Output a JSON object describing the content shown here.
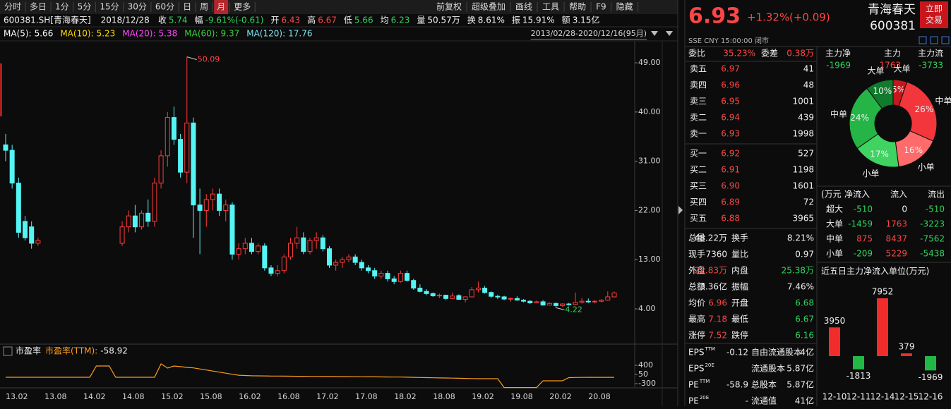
{
  "toolbar": {
    "periods": [
      "分时",
      "多日",
      "1分",
      "5分",
      "15分",
      "30分",
      "60分",
      "日",
      "周",
      "月",
      "更多"
    ],
    "tools": [
      "前复权",
      "超级叠加",
      "画线",
      "工具",
      "帮助",
      "F9",
      "隐藏"
    ]
  },
  "quote_line": {
    "code": "600381.SH[青海春天]",
    "date": "2018/12/28",
    "fields": [
      {
        "label": "收",
        "value": 5.74,
        "tone": "down"
      },
      {
        "label": "幅",
        "value": "-9.61%(-0.61)",
        "tone": "down"
      },
      {
        "label": "开",
        "value": 6.43,
        "tone": "up"
      },
      {
        "label": "高",
        "value": 6.67,
        "tone": "up"
      },
      {
        "label": "低",
        "value": 5.66,
        "tone": "down"
      },
      {
        "label": "均",
        "value": 6.23,
        "tone": "down"
      },
      {
        "label": "量",
        "value": "50.57万"
      },
      {
        "label": "换",
        "value": "8.61%"
      },
      {
        "label": "振",
        "value": "15.91%"
      },
      {
        "label": "额",
        "value": "3.15亿"
      }
    ]
  },
  "ma_line": [
    {
      "label": "MA(5):",
      "value": 5.66,
      "color": "#ffffff"
    },
    {
      "label": "MA(10):",
      "value": 5.23,
      "color": "#ffd800"
    },
    {
      "label": "MA(20):",
      "value": 5.38,
      "color": "#ff46ff"
    },
    {
      "label": "MA(60):",
      "value": 9.37,
      "color": "#35d535"
    },
    {
      "label": "MA(120):",
      "value": 17.76,
      "color": "#7fe3f0"
    }
  ],
  "range": "2013/02/28-2020/12/16(95月)",
  "quote": {
    "price": 6.93,
    "change_pct": "+1.32%",
    "change": "(+0.09)",
    "name": "青海春天",
    "code": "600381",
    "button": [
      "立即",
      "交易"
    ],
    "status": "SSE  CNY  15:00:00  闭市"
  },
  "order_ratio": [
    {
      "label": "委比",
      "value": "35.23%"
    },
    {
      "label": "委差",
      "value": "0.38万"
    }
  ],
  "asks": [
    {
      "label": "卖五",
      "price": "6.97",
      "volume": 41
    },
    {
      "label": "卖四",
      "price": "6.96",
      "volume": 48
    },
    {
      "label": "卖三",
      "price": "6.95",
      "volume": 1001
    },
    {
      "label": "卖二",
      "price": "6.94",
      "volume": 439
    },
    {
      "label": "卖一",
      "price": "6.93",
      "volume": 1998
    }
  ],
  "bids": [
    {
      "label": "买一",
      "price": "6.92",
      "volume": 527
    },
    {
      "label": "买二",
      "price": "6.91",
      "volume": 1198
    },
    {
      "label": "买三",
      "price": "6.90",
      "volume": 1601
    },
    {
      "label": "买四",
      "price": "6.89",
      "volume": 72
    },
    {
      "label": "买五",
      "price": "6.88",
      "volume": 3965
    }
  ],
  "stats": [
    [
      {
        "label": "总量",
        "value": "48.22万"
      },
      {
        "label": "换手",
        "value": "8.21%"
      }
    ],
    [
      {
        "label": "现手",
        "value": 7360
      },
      {
        "label": "量比",
        "value": 0.97
      }
    ],
    [
      {
        "label": "外盘",
        "value": "22.83万",
        "tone": "up"
      },
      {
        "label": "内盘",
        "value": "25.38万",
        "tone": "down"
      }
    ],
    [
      {
        "label": "总额",
        "value": "3.36亿"
      },
      {
        "label": "振幅",
        "value": "7.46%"
      }
    ],
    [
      {
        "label": "均价",
        "value": 6.96,
        "tone": "up"
      },
      {
        "label": "开盘",
        "value": 6.68,
        "tone": "down"
      }
    ],
    [
      {
        "label": "最高",
        "value": 7.18,
        "tone": "up"
      },
      {
        "label": "最低",
        "value": 6.67,
        "tone": "down"
      }
    ],
    [
      {
        "label": "涨停",
        "value": 7.52,
        "tone": "up"
      },
      {
        "label": "跌停",
        "value": 6.16,
        "tone": "down"
      }
    ]
  ],
  "fundamentals": [
    [
      {
        "label": "EPS",
        "sup": "TTM",
        "value": -0.12
      },
      {
        "label": "自由流通股本",
        "value": "4亿"
      }
    ],
    [
      {
        "label": "EPS",
        "sup": "20E"
      },
      {
        "label": "流通股本",
        "value": "5.87亿"
      }
    ],
    [
      {
        "label": "PE",
        "sup": "TTM",
        "value": -58.9
      },
      {
        "label": "总股本",
        "value": "5.87亿"
      }
    ],
    [
      {
        "label": "PE",
        "sup": "20E",
        "value": "-"
      },
      {
        "label": "流通值",
        "value": "41亿"
      }
    ]
  ],
  "main_flow": {
    "headers": [
      "主力净",
      "主力",
      "主力流"
    ],
    "values": [
      -1969,
      1763,
      -3733
    ]
  },
  "flow_table": {
    "headers": [
      "(万元",
      "净流入",
      "流入",
      "流出"
    ],
    "rows": [
      [
        "超大",
        -510,
        0,
        -510
      ],
      [
        "大单",
        -1459,
        1763,
        -3223
      ],
      [
        "中单",
        875,
        8437,
        -7562
      ],
      [
        "小单",
        -209,
        5229,
        -5438
      ]
    ]
  },
  "chart_data": [
    {
      "type": "candlestick",
      "up_color": "#ff3b3b",
      "down_color": "#54f5f5",
      "categories": [
        "13.02",
        null,
        null,
        null,
        null,
        null,
        "13.08",
        null,
        null,
        null,
        null,
        null,
        "14.02",
        null,
        null,
        null,
        null,
        null,
        "14.08",
        null,
        null,
        null,
        null,
        null,
        "15.02",
        null,
        null,
        null,
        null,
        null,
        "15.08",
        null,
        null,
        null,
        null,
        null,
        "16.02",
        null,
        null,
        null,
        null,
        null,
        "16.08",
        null,
        null,
        null,
        null,
        null,
        "17.02",
        null,
        null,
        null,
        null,
        null,
        "17.08",
        null,
        null,
        null,
        null,
        null,
        "18.02",
        null,
        null,
        null,
        null,
        null,
        "18.08",
        null,
        null,
        null,
        null,
        null,
        "19.02",
        null,
        null,
        null,
        null,
        null,
        "19.08",
        null,
        null,
        null,
        null,
        null,
        "20.02",
        null,
        null,
        null,
        null,
        null,
        "20.08",
        null,
        null,
        null,
        null
      ],
      "open": [
        34,
        33,
        27,
        20,
        19,
        16,
        null,
        null,
        null,
        null,
        null,
        null,
        null,
        null,
        null,
        null,
        null,
        null,
        16,
        19,
        21,
        19,
        21.5,
        20,
        27,
        32,
        39,
        35,
        29,
        38,
        23,
        22,
        24,
        25,
        22,
        23,
        14,
        15,
        16,
        14.5,
        15.5,
        11.5,
        10.5,
        11,
        13.5,
        16,
        17,
        14.5,
        16.5,
        17,
        15,
        12,
        12.5,
        13,
        13.5,
        12.5,
        11.5,
        11,
        10,
        10.5,
        9.5,
        9,
        10.5,
        9.2,
        7.8,
        7.2,
        6.8,
        6.4,
        6.5,
        5.9,
        6.43,
        5.74,
        6.2,
        7.5,
        7.8,
        7,
        6.3,
        6.2,
        5.8,
        5.9,
        5.6,
        5.4,
        5.1,
        5.3,
        4.7,
        5,
        4.6,
        4.9,
        4.8,
        5.2,
        5.4,
        5.3,
        5.4,
        5.6,
        6.2
      ],
      "high": [
        36,
        34,
        28,
        21,
        20,
        17,
        null,
        null,
        null,
        null,
        null,
        null,
        null,
        null,
        null,
        null,
        null,
        null,
        20,
        22,
        23,
        22,
        24,
        28,
        33,
        40,
        41,
        36,
        50.09,
        39,
        26,
        25,
        26,
        26,
        24,
        23.5,
        16,
        17,
        17,
        16,
        16,
        12,
        12,
        14,
        17,
        19,
        18,
        17,
        18,
        17.5,
        15.5,
        13,
        13.5,
        14,
        14,
        13,
        12,
        11.5,
        11,
        11,
        10,
        11,
        11,
        9.5,
        8.5,
        7.6,
        7,
        6.8,
        6.6,
        7,
        6.67,
        6.3,
        8,
        9,
        8.2,
        7.2,
        6.6,
        6.4,
        6.1,
        6.3,
        5.8,
        5.6,
        5.5,
        5.6,
        5.2,
        5.2,
        5,
        5.1,
        7,
        6,
        5.9,
        5.6,
        5.8,
        7.2,
        7.18
      ],
      "low": [
        31,
        26,
        17,
        16.5,
        15,
        15.5,
        null,
        null,
        null,
        null,
        null,
        null,
        null,
        null,
        null,
        null,
        null,
        null,
        15.5,
        18,
        18,
        18.5,
        19,
        19,
        26,
        30,
        34,
        28,
        27,
        17,
        14,
        19,
        22,
        21,
        20,
        13,
        13,
        14,
        14,
        14,
        11,
        10,
        10,
        10.5,
        13,
        15,
        14,
        14,
        15,
        14.5,
        11.5,
        11,
        11.5,
        12.5,
        12,
        11,
        10.5,
        9.5,
        9.5,
        9,
        8.5,
        8.8,
        9,
        7.5,
        7,
        6.5,
        6.2,
        6,
        5.6,
        5.8,
        5.66,
        5.2,
        6.1,
        7,
        6.8,
        6,
        5.8,
        5.6,
        5.3,
        5.5,
        5.2,
        4.9,
        5,
        4.6,
        4.6,
        4.22,
        4.4,
        4.6,
        4.7,
        5,
        5.1,
        5,
        5.2,
        5.5,
        6.1
      ],
      "close": [
        33,
        27,
        18,
        17,
        16,
        16.5,
        null,
        null,
        null,
        null,
        null,
        null,
        null,
        null,
        null,
        null,
        null,
        null,
        19,
        21,
        19,
        21.5,
        20,
        27,
        32,
        39,
        35,
        29,
        38,
        23,
        22,
        24,
        25,
        22,
        23,
        14,
        15,
        16,
        14.5,
        15.5,
        11.5,
        10.5,
        11,
        13.5,
        16,
        17,
        14.5,
        16.5,
        17,
        15,
        12,
        12.5,
        13,
        13.5,
        12.5,
        11.5,
        11,
        10,
        10.5,
        9.5,
        9,
        10.5,
        9.2,
        7.8,
        7.2,
        6.8,
        6.4,
        6.5,
        5.9,
        6.35,
        5.74,
        6.2,
        7.5,
        7.8,
        7,
        6.3,
        6.2,
        5.8,
        5.9,
        5.6,
        5.4,
        5.1,
        5.3,
        4.7,
        5,
        4.6,
        4.9,
        4.8,
        5.2,
        5.4,
        5.3,
        5.4,
        5.6,
        6.2,
        6.93
      ],
      "ylim": [
        -2.7,
        52.1
      ],
      "yticks": [
        {
          "value": 4,
          "label": "4.00"
        },
        {
          "value": 13,
          "label": "13.00"
        },
        {
          "value": 22,
          "label": "22.00"
        },
        {
          "value": 31,
          "label": "31.00"
        },
        {
          "value": 40,
          "label": "40.00"
        },
        {
          "value": 49,
          "label": "49.00"
        }
      ]
    },
    {
      "type": "line",
      "title": "市盈率",
      "label": "市盈率(TTM):",
      "color": "#ff9c1a",
      "values": [
        -57,
        -57,
        -57,
        -57,
        -57,
        -57,
        -57,
        -57,
        -57,
        -57,
        -57,
        -57,
        -57,
        -57,
        373,
        373,
        373,
        -57,
        -57,
        -57,
        -57,
        -57,
        -57,
        -57,
        454,
        292,
        373,
        350,
        320,
        300,
        260,
        220,
        180,
        140,
        100,
        60,
        20,
        10,
        0,
        -3,
        -5,
        -10,
        -12,
        -14,
        -16,
        -18,
        -20,
        -22,
        -24,
        -26,
        -28,
        -30,
        -32,
        -34,
        -36,
        -38,
        -40,
        -42,
        -44,
        -46,
        -48,
        -50,
        -55,
        -60,
        -65,
        -70,
        -75,
        -80,
        -85,
        -90,
        -95,
        -100,
        -105,
        -110,
        -110,
        -110,
        -110,
        -450,
        -450,
        -450,
        -450,
        -450,
        -450,
        -190,
        -190,
        -190,
        -190,
        -70,
        -65,
        -62,
        -60,
        -60,
        -59,
        -59,
        -58.92
      ],
      "ylim": [
        -460,
        615
      ],
      "yticks": [
        -300,
        50,
        400
      ]
    },
    {
      "type": "bar",
      "title": "近五日主力净流入单位(万元)",
      "categories": [
        "12-10",
        "12-11",
        "12-14",
        "12-15",
        "12-16"
      ],
      "values": [
        3950,
        -1813,
        7952,
        379,
        -1969
      ],
      "up_color": "#f22b2b",
      "down_color": "#22b845"
    },
    {
      "type": "pie",
      "categories": [
        "大单",
        "中单",
        "小单",
        "小单",
        "中单",
        "大单"
      ],
      "values": [
        5,
        26,
        16,
        17,
        24,
        10
      ],
      "value_labels": [
        "5%",
        "26%",
        "16%",
        "17%",
        "24%",
        "10%"
      ],
      "colors": [
        "#c8161d",
        "#f2363c",
        "#ff6a6a",
        "#3fd361",
        "#25b446",
        "#117a2d"
      ]
    }
  ]
}
